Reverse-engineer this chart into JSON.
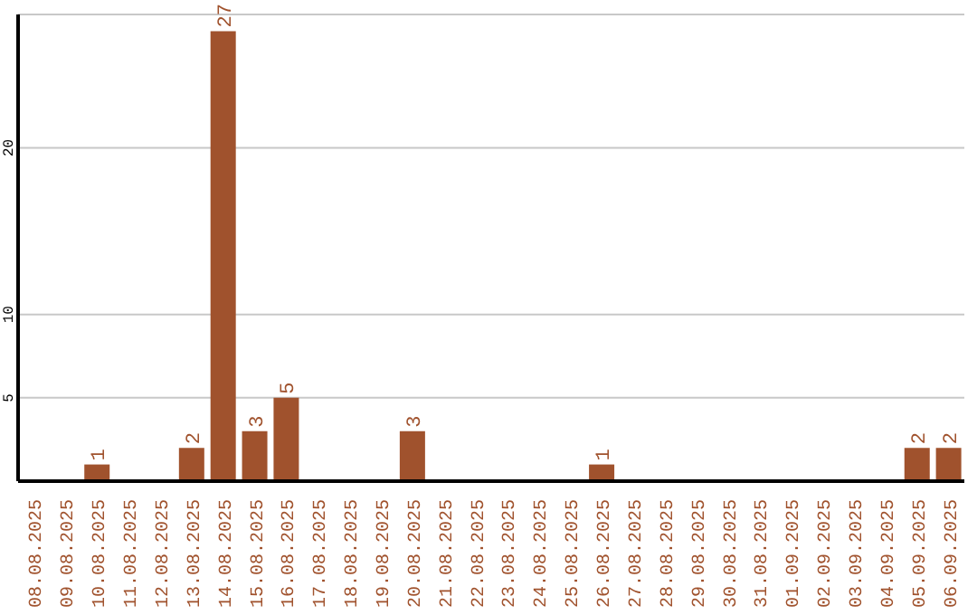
{
  "chart_data": {
    "type": "bar",
    "categories": [
      "08.08.2025",
      "09.08.2025",
      "10.08.2025",
      "11.08.2025",
      "12.08.2025",
      "13.08.2025",
      "14.08.2025",
      "15.08.2025",
      "16.08.2025",
      "17.08.2025",
      "18.08.2025",
      "19.08.2025",
      "20.08.2025",
      "21.08.2025",
      "22.08.2025",
      "23.08.2025",
      "24.08.2025",
      "25.08.2025",
      "26.08.2025",
      "27.08.2025",
      "28.08.2025",
      "29.08.2025",
      "30.08.2025",
      "31.08.2025",
      "01.09.2025",
      "02.09.2025",
      "03.09.2025",
      "04.09.2025",
      "05.09.2025",
      "06.09.2025"
    ],
    "values": [
      0,
      0,
      1,
      0,
      0,
      2,
      27,
      3,
      5,
      0,
      0,
      0,
      3,
      0,
      0,
      0,
      0,
      0,
      1,
      0,
      0,
      0,
      0,
      0,
      0,
      0,
      0,
      0,
      2,
      2
    ],
    "value_labels": [
      null,
      null,
      "1",
      null,
      null,
      "2",
      "27",
      "3",
      "5",
      null,
      null,
      null,
      "3",
      null,
      null,
      null,
      null,
      null,
      "1",
      null,
      null,
      null,
      null,
      null,
      null,
      null,
      null,
      null,
      "2",
      "2"
    ],
    "color": "#a0522d",
    "ylim": [
      0,
      28
    ],
    "yticks": [
      5,
      10,
      20
    ],
    "grid": "y"
  }
}
